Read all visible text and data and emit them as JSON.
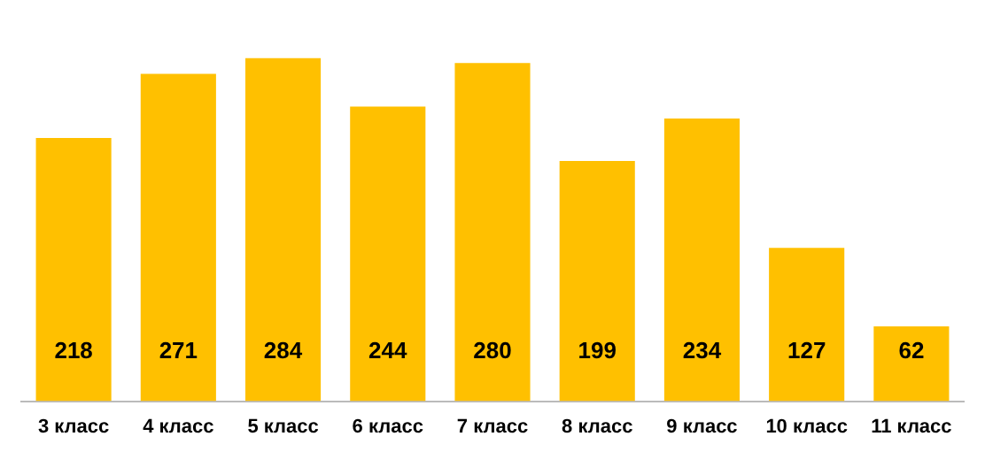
{
  "chart_data": {
    "type": "bar",
    "categories": [
      "3 класс",
      "4 класс",
      "5 класс",
      "6 класс",
      "7 класс",
      "8 класс",
      "9 класс",
      "10 класс",
      "11 класс"
    ],
    "values": [
      218,
      271,
      284,
      244,
      280,
      199,
      234,
      127,
      62
    ],
    "color": "#ffc000",
    "data_labels": true,
    "grid": false,
    "legend": false
  }
}
